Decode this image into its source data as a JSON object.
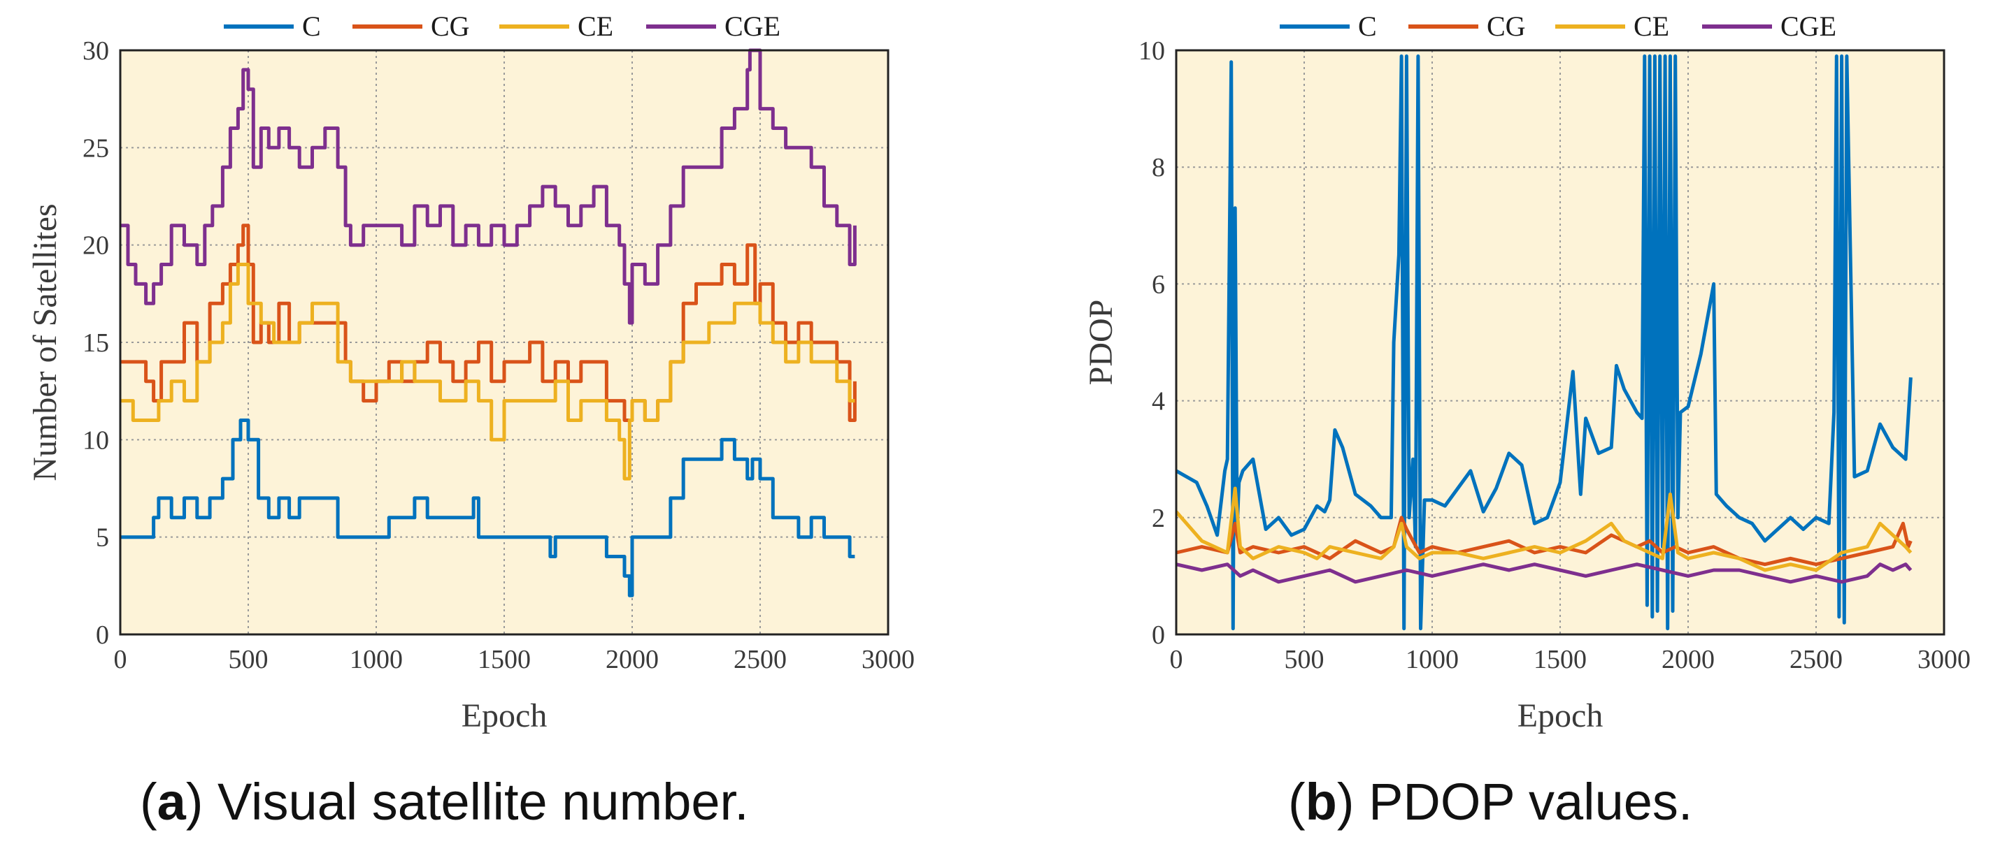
{
  "colors": {
    "C": "#0072BD",
    "CG": "#D95319",
    "CE": "#EDB120",
    "CGE": "#7E2F8E",
    "plot_bg": "#FDF3D8",
    "grid": "#9a9a9a"
  },
  "captions": [
    {
      "letter": "a",
      "open": "(",
      "close": ")",
      "text": " Visual satellite number."
    },
    {
      "letter": "b",
      "open": "(",
      "close": ")",
      "text": " PDOP values."
    }
  ],
  "chart_data": [
    {
      "type": "line",
      "id": "a",
      "title": "",
      "xlabel": "Epoch",
      "ylabel": "Number of Satellites",
      "xlim": [
        0,
        3000
      ],
      "ylim": [
        0,
        30
      ],
      "xticks": [
        0,
        500,
        1000,
        1500,
        2000,
        2500,
        3000
      ],
      "yticks": [
        0,
        5,
        10,
        15,
        20,
        25,
        30
      ],
      "grid": true,
      "legend": [
        "C",
        "CG",
        "CE",
        "CGE"
      ],
      "legend_position": "top-outside",
      "series": [
        {
          "name": "C",
          "x": [
            0,
            100,
            130,
            150,
            200,
            250,
            300,
            350,
            400,
            440,
            470,
            500,
            540,
            580,
            620,
            660,
            700,
            750,
            800,
            850,
            900,
            950,
            1000,
            1050,
            1100,
            1150,
            1200,
            1250,
            1300,
            1350,
            1380,
            1400,
            1450,
            1500,
            1550,
            1600,
            1650,
            1680,
            1700,
            1750,
            1800,
            1850,
            1900,
            1950,
            1970,
            1990,
            2000,
            2050,
            2100,
            2150,
            2200,
            2250,
            2300,
            2350,
            2400,
            2450,
            2470,
            2500,
            2550,
            2600,
            2650,
            2700,
            2750,
            2800,
            2850,
            2870
          ],
          "y": [
            5,
            5,
            6,
            7,
            6,
            7,
            6,
            7,
            8,
            10,
            11,
            10,
            7,
            6,
            7,
            6,
            7,
            7,
            7,
            5,
            5,
            5,
            5,
            6,
            6,
            7,
            6,
            6,
            6,
            6,
            7,
            5,
            5,
            5,
            5,
            5,
            5,
            4,
            5,
            5,
            5,
            5,
            4,
            4,
            3,
            2,
            5,
            5,
            5,
            7,
            9,
            9,
            9,
            10,
            9,
            8,
            9,
            8,
            6,
            6,
            5,
            6,
            5,
            5,
            4,
            4
          ]
        },
        {
          "name": "CG",
          "x": [
            0,
            50,
            100,
            130,
            160,
            200,
            250,
            300,
            350,
            400,
            430,
            460,
            480,
            500,
            520,
            550,
            580,
            620,
            660,
            700,
            750,
            800,
            850,
            880,
            900,
            950,
            1000,
            1050,
            1100,
            1150,
            1200,
            1250,
            1300,
            1350,
            1400,
            1450,
            1500,
            1550,
            1600,
            1650,
            1700,
            1750,
            1800,
            1850,
            1900,
            1950,
            1970,
            2000,
            2050,
            2100,
            2150,
            2200,
            2250,
            2300,
            2350,
            2400,
            2450,
            2480,
            2500,
            2550,
            2600,
            2650,
            2700,
            2750,
            2800,
            2850,
            2870
          ],
          "y": [
            14,
            14,
            13,
            12,
            14,
            14,
            16,
            14,
            17,
            18,
            19,
            20,
            21,
            19,
            15,
            16,
            15,
            17,
            15,
            16,
            16,
            16,
            16,
            14,
            13,
            12,
            13,
            14,
            13,
            14,
            15,
            14,
            13,
            14,
            15,
            13,
            14,
            14,
            15,
            13,
            14,
            13,
            14,
            14,
            12,
            12,
            11,
            12,
            11,
            12,
            14,
            17,
            18,
            18,
            19,
            18,
            20,
            17,
            18,
            16,
            15,
            16,
            15,
            15,
            14,
            11,
            13
          ]
        },
        {
          "name": "CE",
          "x": [
            0,
            50,
            100,
            150,
            200,
            250,
            300,
            350,
            400,
            430,
            460,
            480,
            500,
            550,
            600,
            650,
            700,
            750,
            800,
            850,
            900,
            950,
            1000,
            1050,
            1100,
            1150,
            1200,
            1250,
            1300,
            1350,
            1400,
            1450,
            1500,
            1550,
            1600,
            1650,
            1700,
            1750,
            1800,
            1850,
            1900,
            1950,
            1970,
            1990,
            2000,
            2050,
            2100,
            2150,
            2200,
            2250,
            2300,
            2350,
            2400,
            2450,
            2500,
            2550,
            2600,
            2650,
            2700,
            2750,
            2800,
            2850,
            2870
          ],
          "y": [
            12,
            11,
            11,
            12,
            13,
            12,
            14,
            15,
            16,
            18,
            19,
            19,
            17,
            16,
            15,
            15,
            16,
            17,
            17,
            14,
            13,
            13,
            13,
            13,
            14,
            13,
            13,
            12,
            12,
            13,
            12,
            10,
            12,
            12,
            12,
            12,
            13,
            11,
            12,
            12,
            11,
            10,
            8,
            11,
            12,
            11,
            12,
            14,
            15,
            15,
            16,
            16,
            17,
            17,
            16,
            15,
            14,
            15,
            14,
            14,
            13,
            12,
            12
          ]
        },
        {
          "name": "CGE",
          "x": [
            0,
            30,
            60,
            100,
            130,
            160,
            200,
            250,
            300,
            330,
            360,
            400,
            430,
            460,
            480,
            500,
            520,
            550,
            580,
            620,
            660,
            700,
            750,
            800,
            850,
            880,
            900,
            950,
            1000,
            1050,
            1100,
            1150,
            1200,
            1250,
            1300,
            1350,
            1400,
            1450,
            1500,
            1550,
            1600,
            1650,
            1700,
            1750,
            1800,
            1850,
            1900,
            1950,
            1970,
            1990,
            2000,
            2050,
            2100,
            2150,
            2200,
            2250,
            2300,
            2350,
            2400,
            2450,
            2460,
            2500,
            2550,
            2600,
            2650,
            2700,
            2750,
            2800,
            2850,
            2870
          ],
          "y": [
            21,
            19,
            18,
            17,
            18,
            19,
            21,
            20,
            19,
            21,
            22,
            24,
            26,
            27,
            29,
            28,
            24,
            26,
            25,
            26,
            25,
            24,
            25,
            26,
            24,
            21,
            20,
            21,
            21,
            21,
            20,
            22,
            21,
            22,
            20,
            21,
            20,
            21,
            20,
            21,
            22,
            23,
            22,
            21,
            22,
            23,
            21,
            20,
            18,
            16,
            19,
            18,
            20,
            22,
            24,
            24,
            24,
            26,
            27,
            29,
            30,
            27,
            26,
            25,
            25,
            24,
            22,
            21,
            19,
            21
          ]
        }
      ]
    },
    {
      "type": "line",
      "id": "b",
      "title": "",
      "xlabel": "Epoch",
      "ylabel": "PDOP",
      "xlim": [
        0,
        3000
      ],
      "ylim": [
        0,
        10
      ],
      "xticks": [
        0,
        500,
        1000,
        1500,
        2000,
        2500,
        3000
      ],
      "yticks": [
        0,
        2,
        4,
        6,
        8,
        10
      ],
      "grid": true,
      "legend": [
        "C",
        "CG",
        "CE",
        "CGE"
      ],
      "legend_position": "top-outside",
      "series": [
        {
          "name": "C",
          "x": [
            0,
            80,
            120,
            160,
            190,
            200,
            215,
            222,
            230,
            238,
            245,
            260,
            300,
            350,
            400,
            450,
            500,
            550,
            580,
            600,
            620,
            650,
            700,
            760,
            800,
            840,
            850,
            870,
            880,
            890,
            900,
            910,
            925,
            935,
            945,
            955,
            970,
            1000,
            1050,
            1100,
            1150,
            1200,
            1250,
            1300,
            1350,
            1400,
            1450,
            1500,
            1550,
            1580,
            1600,
            1650,
            1700,
            1720,
            1750,
            1800,
            1820,
            1830,
            1840,
            1850,
            1860,
            1870,
            1880,
            1890,
            1900,
            1910,
            1920,
            1930,
            1940,
            1950,
            1960,
            1970,
            2000,
            2050,
            2100,
            2110,
            2150,
            2200,
            2250,
            2300,
            2350,
            2400,
            2450,
            2500,
            2550,
            2570,
            2580,
            2590,
            2600,
            2610,
            2620,
            2650,
            2700,
            2750,
            2800,
            2850,
            2870
          ],
          "y": [
            2.8,
            2.6,
            2.2,
            1.7,
            2.8,
            3.0,
            9.8,
            0.1,
            7.3,
            1.8,
            2.6,
            2.8,
            3.0,
            1.8,
            2.0,
            1.7,
            1.8,
            2.2,
            2.1,
            2.3,
            3.5,
            3.2,
            2.4,
            2.2,
            2.0,
            2.0,
            5.0,
            6.5,
            9.9,
            0.1,
            9.9,
            2.0,
            3.0,
            1.5,
            9.9,
            0.1,
            2.3,
            2.3,
            2.2,
            2.5,
            2.8,
            2.1,
            2.5,
            3.1,
            2.9,
            1.9,
            2.0,
            2.6,
            4.5,
            2.4,
            3.7,
            3.1,
            3.2,
            4.6,
            4.2,
            3.8,
            3.7,
            9.9,
            0.5,
            9.9,
            0.3,
            9.9,
            0.4,
            9.9,
            1.5,
            9.9,
            0.1,
            9.9,
            0.4,
            9.9,
            2.0,
            3.8,
            3.9,
            4.8,
            6.0,
            2.4,
            2.2,
            2.0,
            1.9,
            1.6,
            1.8,
            2.0,
            1.8,
            2.0,
            1.9,
            3.8,
            9.9,
            0.3,
            9.9,
            0.2,
            9.9,
            2.7,
            2.8,
            3.6,
            3.2,
            3.0,
            4.4
          ]
        },
        {
          "name": "CG",
          "x": [
            0,
            100,
            200,
            230,
            250,
            300,
            400,
            500,
            600,
            700,
            800,
            850,
            880,
            900,
            950,
            1000,
            1100,
            1200,
            1300,
            1400,
            1500,
            1600,
            1700,
            1800,
            1850,
            1900,
            1950,
            2000,
            2100,
            2200,
            2300,
            2400,
            2500,
            2600,
            2700,
            2800,
            2840,
            2860,
            2870
          ],
          "y": [
            1.4,
            1.5,
            1.4,
            1.9,
            1.4,
            1.5,
            1.4,
            1.5,
            1.3,
            1.6,
            1.4,
            1.5,
            2.0,
            1.8,
            1.4,
            1.5,
            1.4,
            1.5,
            1.6,
            1.4,
            1.5,
            1.4,
            1.7,
            1.5,
            1.6,
            1.4,
            1.5,
            1.4,
            1.5,
            1.3,
            1.2,
            1.3,
            1.2,
            1.3,
            1.4,
            1.5,
            1.9,
            1.5,
            1.6
          ]
        },
        {
          "name": "CE",
          "x": [
            0,
            100,
            200,
            230,
            250,
            300,
            400,
            500,
            550,
            600,
            700,
            800,
            850,
            880,
            900,
            950,
            1000,
            1100,
            1200,
            1300,
            1400,
            1500,
            1600,
            1700,
            1750,
            1800,
            1850,
            1900,
            1930,
            1960,
            2000,
            2100,
            2200,
            2300,
            2400,
            2500,
            2600,
            2700,
            2750,
            2800,
            2850,
            2870
          ],
          "y": [
            2.1,
            1.6,
            1.4,
            2.5,
            1.5,
            1.3,
            1.5,
            1.4,
            1.3,
            1.5,
            1.4,
            1.3,
            1.5,
            1.9,
            1.5,
            1.3,
            1.4,
            1.4,
            1.3,
            1.4,
            1.5,
            1.4,
            1.6,
            1.9,
            1.6,
            1.5,
            1.4,
            1.3,
            2.4,
            1.4,
            1.3,
            1.4,
            1.3,
            1.1,
            1.2,
            1.1,
            1.4,
            1.5,
            1.9,
            1.7,
            1.5,
            1.4
          ]
        },
        {
          "name": "CGE",
          "x": [
            0,
            100,
            200,
            250,
            300,
            400,
            500,
            600,
            700,
            800,
            900,
            1000,
            1100,
            1200,
            1300,
            1400,
            1500,
            1600,
            1700,
            1800,
            1900,
            2000,
            2100,
            2200,
            2300,
            2400,
            2500,
            2600,
            2700,
            2750,
            2800,
            2850,
            2870
          ],
          "y": [
            1.2,
            1.1,
            1.2,
            1.0,
            1.1,
            0.9,
            1.0,
            1.1,
            0.9,
            1.0,
            1.1,
            1.0,
            1.1,
            1.2,
            1.1,
            1.2,
            1.1,
            1.0,
            1.1,
            1.2,
            1.1,
            1.0,
            1.1,
            1.1,
            1.0,
            0.9,
            1.0,
            0.9,
            1.0,
            1.2,
            1.1,
            1.2,
            1.1
          ]
        }
      ]
    }
  ]
}
